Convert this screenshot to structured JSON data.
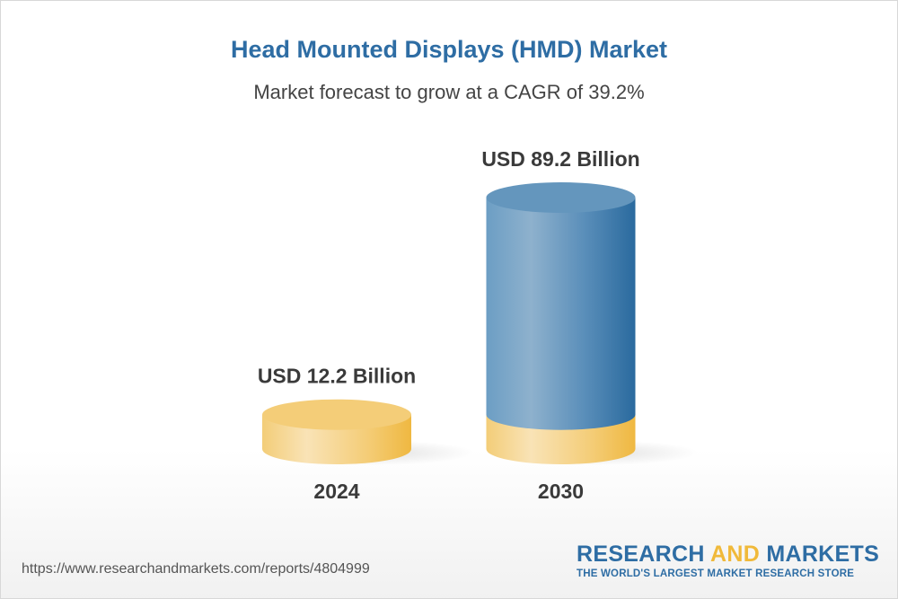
{
  "title": "Head Mounted Displays (HMD) Market",
  "subtitle": "Market forecast to grow at a CAGR of 39.2%",
  "chart_data": {
    "type": "bar",
    "style": "3d-cylinder",
    "categories": [
      "2024",
      "2030"
    ],
    "values": [
      12.2,
      89.2
    ],
    "data_labels": [
      "USD 12.2 Billion",
      "USD 89.2 Billion"
    ],
    "unit": "USD Billion",
    "cagr": "39.2%",
    "colors": {
      "base": "#f2c25a",
      "growth": "#2d6b9f"
    }
  },
  "footer": {
    "url": "https://www.researchandmarkets.com/reports/4804999",
    "logo_part1": "RESEARCH ",
    "logo_part2": "AND",
    "logo_part3": " MARKETS",
    "logo_tagline": "THE WORLD'S LARGEST MARKET RESEARCH STORE"
  }
}
